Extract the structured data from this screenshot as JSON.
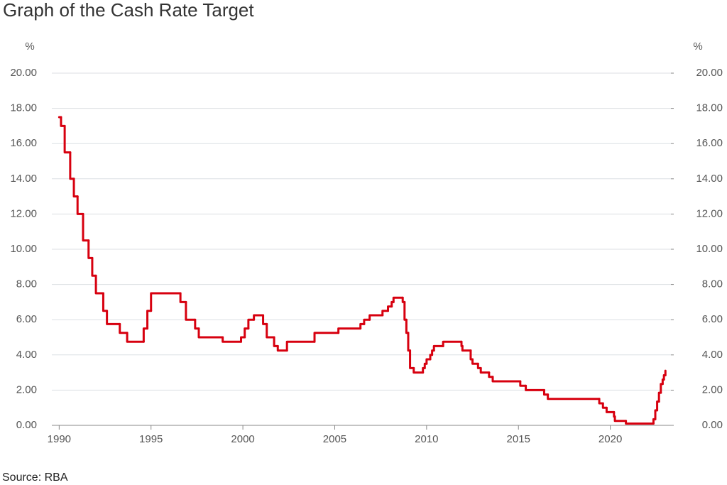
{
  "chart_data": {
    "type": "step",
    "title": "Graph of the Cash Rate Target",
    "source": "Source: RBA",
    "ylabel": "%",
    "y2label": "%",
    "grid": true,
    "color": "#d7000f",
    "xlim": [
      1989.6,
      2023.3
    ],
    "xticks": [
      1990,
      1995,
      2000,
      2005,
      2010,
      2015,
      2020
    ],
    "ylim": [
      0,
      20
    ],
    "yticks": [
      {
        "value": 0,
        "label": "0.00"
      },
      {
        "value": 2,
        "label": "2.00"
      },
      {
        "value": 4,
        "label": "4.00"
      },
      {
        "value": 6,
        "label": "6.00"
      },
      {
        "value": 8,
        "label": "8.00"
      },
      {
        "value": 10,
        "label": "10.00"
      },
      {
        "value": 12,
        "label": "12.00"
      },
      {
        "value": 14,
        "label": "14.00"
      },
      {
        "value": 16,
        "label": "16.00"
      },
      {
        "value": 18,
        "label": "18.00"
      },
      {
        "value": 20,
        "label": "20.00"
      }
    ],
    "y2lim": [
      0,
      20
    ],
    "y2ticks": [
      {
        "value": 0,
        "label": "0.00"
      },
      {
        "value": 2,
        "label": "2.00"
      },
      {
        "value": 4,
        "label": "4.00"
      },
      {
        "value": 6,
        "label": "6.00"
      },
      {
        "value": 8,
        "label": "8.00"
      },
      {
        "value": 10,
        "label": "10.00"
      },
      {
        "value": 12,
        "label": "12.00"
      },
      {
        "value": 14,
        "label": "14.00"
      },
      {
        "value": 16,
        "label": "16.00"
      },
      {
        "value": 18,
        "label": "18.00"
      },
      {
        "value": 20,
        "label": "20.00"
      }
    ],
    "x": [
      1990.0,
      1990.1,
      1990.3,
      1990.6,
      1990.8,
      1991.0,
      1991.3,
      1991.6,
      1991.8,
      1992.0,
      1992.4,
      1992.6,
      1993.3,
      1993.7,
      1994.6,
      1994.8,
      1995.0,
      1996.6,
      1996.9,
      1997.4,
      1997.6,
      1998.9,
      1999.9,
      2000.1,
      2000.3,
      2000.6,
      2001.1,
      2001.3,
      2001.7,
      2001.9,
      2002.4,
      2003.9,
      2005.2,
      2006.4,
      2006.6,
      2006.9,
      2007.6,
      2007.9,
      2008.1,
      2008.2,
      2008.7,
      2008.8,
      2008.9,
      2009.0,
      2009.1,
      2009.3,
      2009.8,
      2009.9,
      2010.0,
      2010.2,
      2010.3,
      2010.4,
      2010.9,
      2011.9,
      2011.95,
      2012.4,
      2012.5,
      2012.8,
      2012.95,
      2013.4,
      2013.6,
      2015.1,
      2015.4,
      2016.4,
      2016.6,
      2019.4,
      2019.6,
      2019.8,
      2020.2,
      2020.25,
      2020.85,
      2022.35,
      2022.45,
      2022.55,
      2022.65,
      2022.75,
      2022.85,
      2022.92,
      2023.0
    ],
    "values": [
      17.5,
      17.0,
      15.5,
      14.0,
      13.0,
      12.0,
      10.5,
      9.5,
      8.5,
      7.5,
      6.5,
      5.75,
      5.25,
      4.75,
      5.5,
      6.5,
      7.5,
      7.0,
      6.0,
      5.5,
      5.0,
      4.75,
      5.0,
      5.5,
      6.0,
      6.25,
      5.75,
      5.0,
      4.5,
      4.25,
      4.75,
      5.25,
      5.5,
      5.75,
      6.0,
      6.25,
      6.5,
      6.75,
      7.0,
      7.25,
      7.0,
      6.0,
      5.25,
      4.25,
      3.25,
      3.0,
      3.25,
      3.5,
      3.75,
      4.0,
      4.25,
      4.5,
      4.75,
      4.5,
      4.25,
      3.75,
      3.5,
      3.25,
      3.0,
      2.75,
      2.5,
      2.25,
      2.0,
      1.75,
      1.5,
      1.25,
      1.0,
      0.75,
      0.5,
      0.25,
      0.1,
      0.35,
      0.85,
      1.35,
      1.85,
      2.35,
      2.6,
      2.85,
      3.1
    ]
  }
}
